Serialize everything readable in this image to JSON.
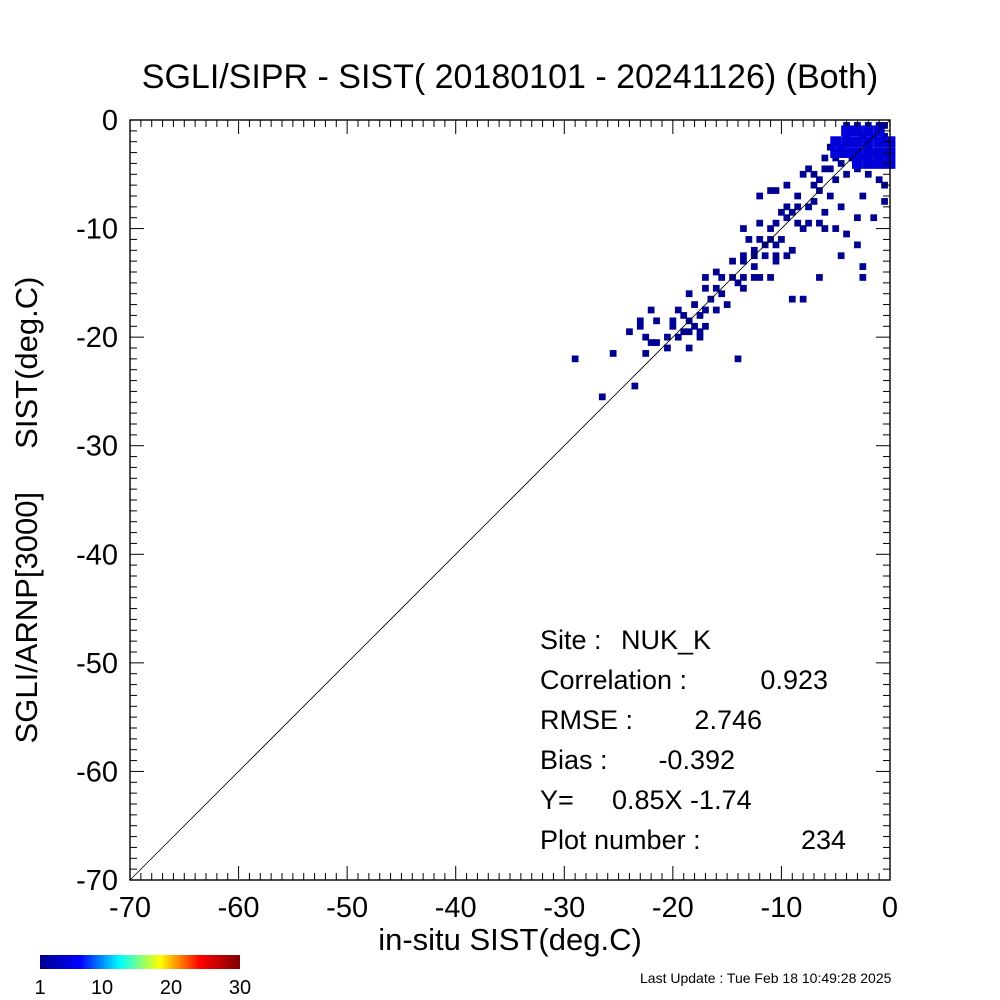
{
  "chart_data": {
    "type": "heatmap",
    "title": "SGLI/SIPR - SIST( 20180101 - 20241126) (Both)",
    "xlabel": "in-situ SIST(deg.C)",
    "ylabel": "SGLI/ARNP[3000]     SIST(deg.C)",
    "xlim": [
      -70,
      0
    ],
    "ylim": [
      -70,
      0
    ],
    "x_ticks": [
      -70,
      -60,
      -50,
      -40,
      -30,
      -20,
      -10,
      0
    ],
    "y_ticks": [
      -70,
      -60,
      -50,
      -40,
      -30,
      -20,
      -10,
      0
    ],
    "reference_line": "y = x",
    "bin_size_deg": 1,
    "cell_color": "#00008f",
    "dense_color": "#0000d8",
    "colorbar": {
      "min": 1,
      "max": 30,
      "tick_labels": [
        "1",
        "10",
        "20",
        "30"
      ],
      "tick_values": [
        1,
        10,
        20,
        30
      ],
      "colors": [
        "#00008f",
        "#0000ff",
        "#00ffff",
        "#ffff00",
        "#ff0000",
        "#800000"
      ]
    },
    "stats": [
      {
        "label": "Site :",
        "value": "NUK_K"
      },
      {
        "label": "Correlation :",
        "value": "0.923"
      },
      {
        "label": "RMSE :",
        "value": "2.746"
      },
      {
        "label": "Bias :",
        "value": "-0.392"
      },
      {
        "label": "Y=",
        "value": "0.85X  -1.74"
      },
      {
        "label": "Plot number :",
        "value": "234"
      }
    ],
    "points": [
      [
        -26.5,
        -25.5
      ],
      [
        -23.5,
        -24.5
      ],
      [
        -29,
        -22
      ],
      [
        -25.5,
        -21.5
      ],
      [
        -22.5,
        -21.5
      ],
      [
        -22,
        -20.5
      ],
      [
        -21.5,
        -20.5
      ],
      [
        -20.5,
        -20
      ],
      [
        -19.5,
        -20
      ],
      [
        -18.5,
        -21
      ],
      [
        -20,
        -19
      ],
      [
        -19,
        -19.5
      ],
      [
        -18,
        -19
      ],
      [
        -17.5,
        -19.5
      ],
      [
        -17,
        -19
      ],
      [
        -23,
        -19
      ],
      [
        -23,
        -18.5
      ],
      [
        -21.5,
        -18.5
      ],
      [
        -20,
        -18.5
      ],
      [
        -19,
        -18
      ],
      [
        -18.5,
        -18.5
      ],
      [
        -17.5,
        -18
      ],
      [
        -22,
        -17.5
      ],
      [
        -19.5,
        -17.5
      ],
      [
        -17,
        -17.5
      ],
      [
        -16,
        -17.5
      ],
      [
        -18,
        -17
      ],
      [
        -16.5,
        -16.5
      ],
      [
        -15,
        -17
      ],
      [
        -15.5,
        -16
      ],
      [
        -18.5,
        -16
      ],
      [
        -17,
        -15.5
      ],
      [
        -16,
        -15.5
      ],
      [
        -14,
        -15
      ],
      [
        -13.5,
        -15.5
      ],
      [
        -17,
        -14.5
      ],
      [
        -15.5,
        -14.5
      ],
      [
        -14.5,
        -14.5
      ],
      [
        -13.5,
        -14.5
      ],
      [
        -12.5,
        -14.5
      ],
      [
        -16,
        -14
      ],
      [
        -12,
        -14.5
      ],
      [
        -11,
        -14.5
      ],
      [
        -13.5,
        -12.5
      ],
      [
        -12.5,
        -12
      ],
      [
        -11.5,
        -11.5
      ],
      [
        -10.5,
        -11.5
      ],
      [
        -13,
        -11
      ],
      [
        -12,
        -11
      ],
      [
        -11,
        -11
      ],
      [
        -10,
        -11
      ],
      [
        -12.5,
        -12.5
      ],
      [
        -11.5,
        -12.5
      ],
      [
        -10.5,
        -12.5
      ],
      [
        -9,
        -12
      ],
      [
        -14.5,
        -13
      ],
      [
        -13.5,
        -13
      ],
      [
        -12.5,
        -13.5
      ],
      [
        -10.5,
        -13
      ],
      [
        -9.5,
        -12.5
      ],
      [
        -13.5,
        -10
      ],
      [
        -11,
        -10
      ],
      [
        -12,
        -9.5
      ],
      [
        -10.5,
        -9.5
      ],
      [
        -9.5,
        -9
      ],
      [
        -8.5,
        -9.5
      ],
      [
        -7.5,
        -9.5
      ],
      [
        -6.5,
        -9.5
      ],
      [
        -8,
        -10
      ],
      [
        -6,
        -10
      ],
      [
        -5,
        -10
      ],
      [
        -4,
        -10.5
      ],
      [
        -10,
        -8.5
      ],
      [
        -9,
        -8.5
      ],
      [
        -8.5,
        -8
      ],
      [
        -7.5,
        -8
      ],
      [
        -9.5,
        -8
      ],
      [
        -8.5,
        -7
      ],
      [
        -6,
        -8.5
      ],
      [
        -4.5,
        -8
      ],
      [
        -3,
        -9
      ],
      [
        -1.5,
        -9
      ],
      [
        -12,
        -7
      ],
      [
        -10.5,
        -6.5
      ],
      [
        -11,
        -6.5
      ],
      [
        -9.5,
        -6
      ],
      [
        -7,
        -6
      ],
      [
        -6.5,
        -6.5
      ],
      [
        -5,
        -5.5
      ],
      [
        -4,
        -5
      ],
      [
        -3,
        -4.5
      ],
      [
        -8,
        -5
      ],
      [
        -7,
        -5
      ],
      [
        -6,
        -4.5
      ],
      [
        -5.5,
        -4.5
      ],
      [
        -4.5,
        -4
      ],
      [
        -3.5,
        -3.5
      ],
      [
        -2.5,
        -3.5
      ],
      [
        -1.5,
        -3
      ],
      [
        -0.5,
        -3
      ],
      [
        -4.5,
        -2.5
      ],
      [
        -3.5,
        -2
      ],
      [
        -2.5,
        -1.5
      ],
      [
        -1.5,
        -1.5
      ],
      [
        -0.5,
        -1.5
      ],
      [
        -4,
        -1.5
      ],
      [
        -3,
        -1
      ],
      [
        -2,
        -0.5
      ],
      [
        -1,
        -0.5
      ],
      [
        -5.5,
        -2.5
      ],
      [
        -4.5,
        -3
      ],
      [
        -2,
        -2.5
      ],
      [
        -1,
        -2
      ],
      [
        -0.5,
        -0.5
      ],
      [
        -2,
        -5
      ],
      [
        -1,
        -5.5
      ],
      [
        -0.5,
        -6
      ],
      [
        -2.5,
        -7
      ],
      [
        -0.5,
        -7.5
      ],
      [
        -5.5,
        -7
      ],
      [
        -7,
        -7.5
      ],
      [
        -4.5,
        -12.5
      ],
      [
        -3,
        -11.5
      ],
      [
        -2.5,
        -13.5
      ],
      [
        -2.5,
        -14.5
      ],
      [
        -6.5,
        -14.5
      ],
      [
        -9,
        -16.5
      ],
      [
        -8,
        -16.5
      ],
      [
        -14,
        -22
      ],
      [
        -20.5,
        -21
      ],
      [
        -22.5,
        -20
      ],
      [
        -24,
        -19.5
      ],
      [
        -17.5,
        -20
      ],
      [
        -18.5,
        -19.5
      ],
      [
        -6,
        -3.5
      ],
      [
        -5,
        -3.5
      ],
      [
        -3,
        -3
      ],
      [
        -1.5,
        -4
      ],
      [
        -0.5,
        -4
      ],
      [
        -2,
        -3.5
      ],
      [
        -4,
        -0.5
      ],
      [
        -3,
        -0.5
      ],
      [
        -6.5,
        -5.5
      ],
      [
        -7.5,
        -4.5
      ]
    ],
    "dense_cells": [
      [
        -4,
        -1
      ],
      [
        -3,
        -1
      ],
      [
        -2,
        -1
      ],
      [
        -1,
        -1
      ],
      [
        -4,
        -2
      ],
      [
        -3,
        -2
      ],
      [
        -2,
        -2
      ],
      [
        -1,
        -2
      ],
      [
        0,
        -2
      ],
      [
        -5,
        -2
      ],
      [
        -5,
        -3
      ],
      [
        -4,
        -3
      ],
      [
        -3,
        -3
      ],
      [
        -2,
        -3
      ],
      [
        -1,
        -3
      ],
      [
        0,
        -3
      ],
      [
        -3,
        -4
      ],
      [
        -2,
        -4
      ],
      [
        -1,
        -4
      ],
      [
        0,
        -4
      ]
    ]
  },
  "footer": {
    "last_update": "Last Update : Tue Feb 18 10:49:28 2025"
  }
}
